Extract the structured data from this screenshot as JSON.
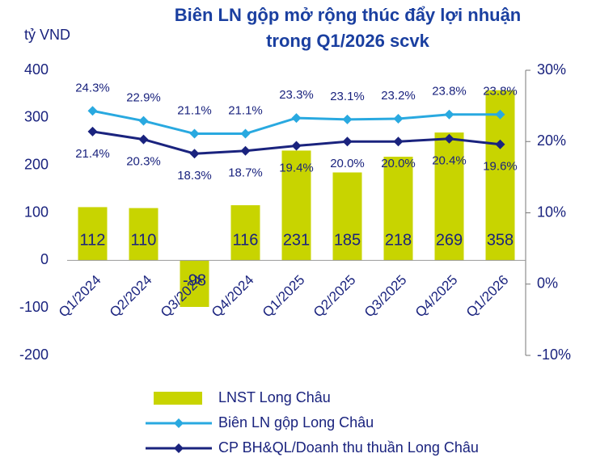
{
  "chart_data": {
    "type": "bar",
    "title": [
      "Biên LN gộp mở rộng thúc đẩy lợi nhuận",
      "trong Q1/2026 scvk"
    ],
    "y_axis_label": "tỷ VND",
    "categories": [
      "Q1/2024",
      "Q2/2024",
      "Q3/2024",
      "Q4/2024",
      "Q1/2025",
      "Q2/2025",
      "Q3/2025",
      "Q4/2025",
      "Q1/2026"
    ],
    "series": [
      {
        "name": "LNST Long Châu",
        "type": "bar",
        "color": "#c8d400",
        "values": [
          112,
          110,
          -98,
          116,
          231,
          185,
          218,
          269,
          358
        ]
      },
      {
        "name": "Biên LN gộp Long Châu",
        "type": "line",
        "axis": "y2",
        "color": "#29a9e0",
        "label_side": "above",
        "values": [
          24.3,
          22.9,
          21.1,
          21.1,
          23.3,
          23.1,
          23.2,
          23.8,
          23.8
        ],
        "value_labels": [
          "24.3%",
          "22.9%",
          "21.1%",
          "21.1%",
          "23.3%",
          "23.1%",
          "23.2%",
          "23.8%",
          "23.8%"
        ]
      },
      {
        "name": "CP BH&QL/Doanh thu thuần Long Châu",
        "type": "line",
        "axis": "y2",
        "color": "#1a237e",
        "label_side": "below",
        "values": [
          21.4,
          20.3,
          18.3,
          18.7,
          19.4,
          20.0,
          20.0,
          20.4,
          19.6
        ],
        "value_labels": [
          "21.4%",
          "20.3%",
          "18.3%",
          "18.7%",
          "19.4%",
          "20.0%",
          "20.0%",
          "20.4%",
          "19.6%"
        ]
      }
    ],
    "ylim": [
      -200,
      400
    ],
    "yticks": [
      -200,
      -100,
      0,
      100,
      200,
      300,
      400
    ],
    "y2lim": [
      -10,
      30
    ],
    "y2ticks": [
      {
        "value": -10,
        "label": "-10%"
      },
      {
        "value": 0,
        "label": "0%"
      },
      {
        "value": 10,
        "label": "10%"
      },
      {
        "value": 20,
        "label": "20%"
      },
      {
        "value": 30,
        "label": "30%"
      }
    ],
    "grid": false,
    "legend": "bottom"
  }
}
